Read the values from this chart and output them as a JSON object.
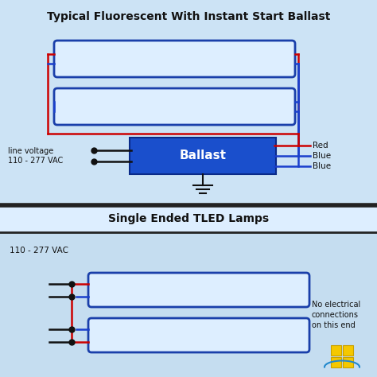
{
  "bg_color": "#c5ddf0",
  "bg_color_top": "#cce3f5",
  "bg_color_bot": "#c5ddf0",
  "title_top": "Typical Fluorescent With Instant Start Ballast",
  "title_bottom": "Single Ended TLED Lamps",
  "wire_red": "#cc0000",
  "wire_blue": "#1a3fcc",
  "wire_black": "#111111",
  "lamp_fill": "#ddeeff",
  "lamp_edge": "#1a3faa",
  "ballast_fill": "#1a4fcc",
  "ballast_text": "Ballast",
  "ballast_text_color": "white",
  "label_line_voltage": "line voltage\n110 - 277 VAC",
  "label_110_277": "110 - 277 VAC",
  "label_red": "Red",
  "label_blue1": "Blue",
  "label_blue2": "Blue",
  "label_no_elec": "No electrical\nconnections\non this end",
  "divider_color": "#222222",
  "logo_color": "#f5c800",
  "logo_arc_color": "#2288cc"
}
